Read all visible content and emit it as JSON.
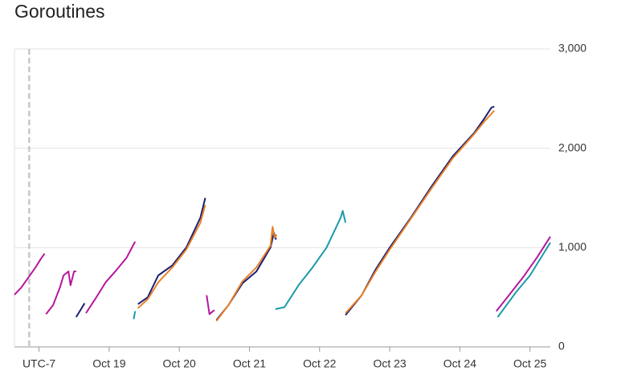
{
  "chart_data": {
    "type": "line",
    "title": "Goroutines",
    "xlim": [
      17.65,
      25.29
    ],
    "xticks": [
      {
        "value": 18,
        "label": "UTC-7"
      },
      {
        "value": 19,
        "label": "Oct 19"
      },
      {
        "value": 20,
        "label": "Oct 20"
      },
      {
        "value": 21,
        "label": "Oct 21"
      },
      {
        "value": 22,
        "label": "Oct 22"
      },
      {
        "value": 23,
        "label": "Oct 23"
      },
      {
        "value": 24,
        "label": "Oct 24"
      },
      {
        "value": 25,
        "label": "Oct 25"
      }
    ],
    "ylim": [
      0,
      3000
    ],
    "yticks": [
      0,
      {
        "value": 1000,
        "label": "1,000"
      },
      {
        "value": 2000,
        "label": "2,000"
      },
      {
        "value": 3000,
        "label": "3,000"
      }
    ],
    "grid": true,
    "y_axis_side": "right",
    "cursor_x": 17.86,
    "series": [
      {
        "color": "#b5179e",
        "x": [
          17.65,
          17.75,
          17.86,
          17.95,
          18.02,
          18.08,
          18.09,
          18.1,
          18.2,
          18.3,
          18.35,
          18.42,
          18.45,
          18.5,
          18.53,
          18.6,
          18.67,
          18.8,
          18.95,
          19.1,
          19.25,
          19.37,
          19.9,
          20.39,
          20.43,
          20.5,
          23,
          24.52,
          24.7,
          24.9,
          25.1,
          25.29
        ],
        "values": [
          525,
          600,
          710,
          800,
          880,
          940,
          null,
          330,
          420,
          600,
          720,
          760,
          620,
          760,
          760,
          null,
          340,
          480,
          650,
          770,
          900,
          1060,
          null,
          520,
          330,
          370,
          null,
          360,
          520,
          700,
          900,
          1110
        ]
      },
      {
        "color": "#1b9aaa",
        "x": [
          19.35,
          19.37,
          20,
          21.37,
          21.5,
          21.7,
          21.9,
          22.1,
          22.3,
          22.33,
          22.37,
          23.5,
          24.54,
          24.8,
          25.0,
          25.29
        ],
        "values": [
          280,
          360,
          null,
          380,
          400,
          620,
          800,
          1000,
          1300,
          1370,
          1250,
          null,
          300,
          550,
          720,
          1050
        ]
      },
      {
        "color": "#1a1f71",
        "x": [
          18.53,
          18.6,
          18.65,
          19,
          19.41,
          19.55,
          19.7,
          19.9,
          20.1,
          20.3,
          20.37,
          20.45,
          20.53,
          20.7,
          20.9,
          21.1,
          21.3,
          21.35,
          21.38,
          21.9,
          22.37,
          22.6,
          22.8,
          23.0,
          23.3,
          23.6,
          23.9,
          24.2,
          24.35,
          24.45,
          24.49
        ],
        "values": [
          300,
          380,
          440,
          null,
          430,
          500,
          720,
          820,
          1000,
          1300,
          1500,
          null,
          270,
          420,
          640,
          760,
          1000,
          1150,
          1080,
          null,
          320,
          520,
          780,
          1000,
          1300,
          1620,
          1920,
          2150,
          2300,
          2410,
          2420
        ]
      },
      {
        "color": "#e8822a",
        "x": [
          19.41,
          19.55,
          19.7,
          19.9,
          20.1,
          20.3,
          20.37,
          20.45,
          20.53,
          20.7,
          20.9,
          21.1,
          21.3,
          21.33,
          21.36,
          21.39,
          21.9,
          22.37,
          22.6,
          22.8,
          23.0,
          23.3,
          23.6,
          23.9,
          24.2,
          24.35,
          24.49
        ],
        "values": [
          390,
          480,
          650,
          800,
          980,
          1250,
          1430,
          null,
          260,
          420,
          660,
          800,
          1020,
          1210,
          1100,
          1130,
          null,
          340,
          520,
          760,
          980,
          1290,
          1600,
          1900,
          2140,
          2270,
          2380
        ]
      }
    ]
  }
}
